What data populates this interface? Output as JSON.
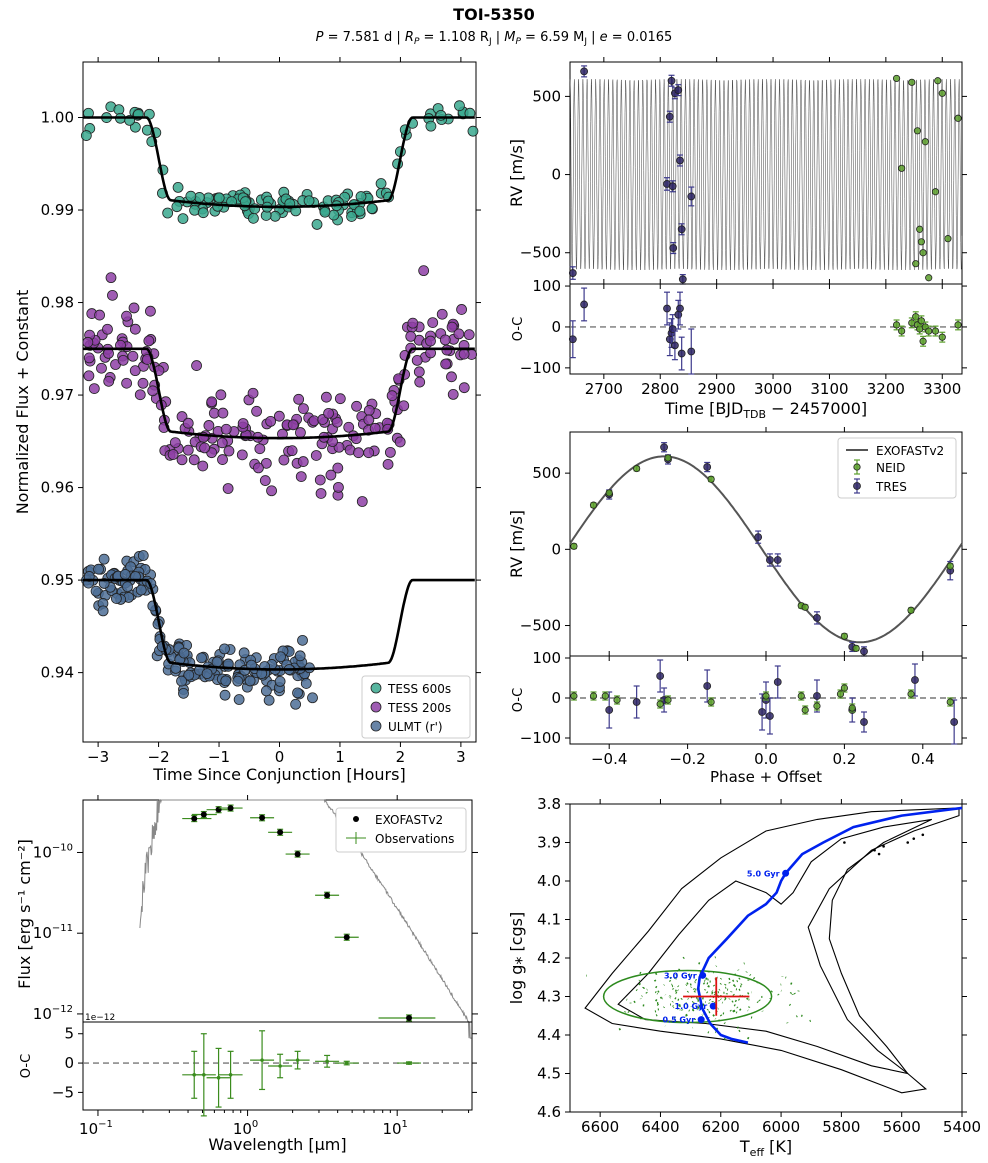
{
  "figure": {
    "title": "TOI-5350",
    "subtitle": {
      "p_sym": "P",
      "p_val": " = 7.581 d  |  ",
      "r_sym": "R",
      "r_sub": "P",
      "r_val": " = 1.108 R",
      "r_unit_sub": "J",
      "sep1": "  |  ",
      "m_sym": "M",
      "m_sub": "P",
      "m_val": " = 6.59 M",
      "m_unit_sub": "J",
      "sep2": "  |  ",
      "e_sym": "e",
      "e_val": " = 0.0165"
    }
  },
  "chart_data": [
    {
      "id": "transit",
      "type": "scatter",
      "xlabel": "Time Since Conjunction [Hours]",
      "ylabel": "Normalized Flux + Constant",
      "xlim": [
        -3.25,
        3.25
      ],
      "ylim": [
        0.9325,
        1.006
      ],
      "xticks": [
        -3,
        -2,
        -1,
        0,
        1,
        2,
        3
      ],
      "yticks": [
        0.94,
        0.95,
        0.96,
        0.97,
        0.98,
        0.99,
        1.0
      ],
      "ytick_labels": [
        "0.94",
        "0.95",
        "0.96",
        "0.97",
        "0.98",
        "0.99",
        "1.00"
      ],
      "series": [
        {
          "name": "TESS 600s",
          "color": "#3aa88e",
          "offset": 1.0,
          "x_range": [
            -3.2,
            3.2
          ],
          "scatter": 0.0009,
          "n": 130
        },
        {
          "name": "TESS 200s",
          "color": "#8e3fa6",
          "offset": 0.975,
          "x_range": [
            -3.2,
            3.2
          ],
          "scatter": 0.0024,
          "n": 230
        },
        {
          "name": "ULMT (r')",
          "color": "#4d6f96",
          "offset": 0.95,
          "x_range": [
            -3.2,
            0.55
          ],
          "scatter": 0.0016,
          "n": 200
        }
      ],
      "model": {
        "color": "#000000",
        "t1": -2.2,
        "t2": -1.8,
        "depth": 0.0093
      },
      "legend": "bottom-right"
    },
    {
      "id": "rv_time",
      "type": "scatter",
      "ylabel": "RV [m/s]",
      "xlim": [
        2640,
        3335
      ],
      "ylim": [
        -700,
        720
      ],
      "yticks": [
        -500,
        0,
        500
      ],
      "period": 7.581,
      "amplitude": 610,
      "neid": {
        "color": "#5a9e2a",
        "points": [
          [
            3219,
            615
          ],
          [
            3228,
            40
          ],
          [
            3246,
            590
          ],
          [
            3253,
            -570
          ],
          [
            3256,
            280
          ],
          [
            3260,
            -350
          ],
          [
            3263,
            -430
          ],
          [
            3266,
            -500
          ],
          [
            3270,
            210
          ],
          [
            3276,
            -660
          ],
          [
            3288,
            -110
          ],
          [
            3292,
            600
          ],
          [
            3300,
            520
          ],
          [
            3310,
            -410
          ],
          [
            3328,
            360
          ]
        ]
      },
      "tres": {
        "color": "#2d2463",
        "points": [
          [
            2645,
            -630,
            40
          ],
          [
            2665,
            660,
            35
          ],
          [
            2812,
            -60,
            40
          ],
          [
            2817,
            370,
            35
          ],
          [
            2820,
            600,
            35
          ],
          [
            2822,
            -75,
            35
          ],
          [
            2823,
            -470,
            35
          ],
          [
            2826,
            520,
            35
          ],
          [
            2832,
            540,
            35
          ],
          [
            2835,
            90,
            35
          ],
          [
            2838,
            -350,
            35
          ],
          [
            2840,
            -670,
            30
          ],
          [
            2855,
            -140,
            60
          ]
        ]
      }
    },
    {
      "id": "rv_time_resid",
      "type": "scatter",
      "ylabel": "O-C",
      "xlabel_main": "Time [BJD",
      "xlabel_sub": "TDB",
      "xlabel_tail": " − 2457000]",
      "xlim": [
        2640,
        3335
      ],
      "ylim": [
        -115,
        105
      ],
      "xticks": [
        2700,
        2800,
        2900,
        3000,
        3100,
        3200,
        3300
      ],
      "yticks": [
        -100,
        0,
        100
      ],
      "neid": [
        [
          3219,
          5
        ],
        [
          3228,
          -10
        ],
        [
          3246,
          10
        ],
        [
          3253,
          25
        ],
        [
          3256,
          5
        ],
        [
          3260,
          -5
        ],
        [
          3263,
          15
        ],
        [
          3266,
          -35
        ],
        [
          3270,
          0
        ],
        [
          3276,
          -10
        ],
        [
          3288,
          -10
        ],
        [
          3300,
          -25
        ],
        [
          3328,
          5
        ]
      ],
      "tres": [
        [
          2645,
          -30,
          45
        ],
        [
          2665,
          55,
          40
        ],
        [
          2812,
          45,
          40
        ],
        [
          2817,
          -30,
          40
        ],
        [
          2820,
          -15,
          35
        ],
        [
          2822,
          -5,
          35
        ],
        [
          2826,
          -45,
          35
        ],
        [
          2832,
          30,
          35
        ],
        [
          2835,
          45,
          40
        ],
        [
          2838,
          -65,
          40
        ],
        [
          2855,
          -60,
          55
        ]
      ]
    },
    {
      "id": "rv_phase",
      "type": "line",
      "ylabel": "RV [m/s]",
      "xlim": [
        -0.5,
        0.5
      ],
      "ylim": [
        -700,
        770
      ],
      "yticks": [
        -500,
        0,
        500
      ],
      "amplitude": 610,
      "legend": {
        "entries": [
          "EXOFASTv2",
          "NEID",
          "TRES"
        ],
        "position": "top-right"
      },
      "model_color": "#555555",
      "neid": [
        [
          -0.49,
          20
        ],
        [
          -0.44,
          290
        ],
        [
          -0.4,
          370
        ],
        [
          -0.33,
          530
        ],
        [
          -0.25,
          600
        ],
        [
          -0.14,
          460
        ],
        [
          0.09,
          -370
        ],
        [
          0.1,
          -380
        ],
        [
          0.2,
          -570
        ],
        [
          0.23,
          -650
        ],
        [
          0.37,
          -400
        ],
        [
          0.47,
          -110
        ]
      ],
      "tres": [
        [
          -0.4,
          360,
          30
        ],
        [
          -0.26,
          670,
          30
        ],
        [
          -0.25,
          590,
          30
        ],
        [
          -0.15,
          540,
          30
        ],
        [
          -0.02,
          80,
          40
        ],
        [
          0.01,
          -70,
          40
        ],
        [
          0.03,
          -70,
          40
        ],
        [
          0.13,
          -450,
          40
        ],
        [
          0.22,
          -640,
          30
        ],
        [
          0.25,
          -670,
          30
        ],
        [
          0.47,
          -140,
          60
        ]
      ]
    },
    {
      "id": "rv_phase_resid",
      "type": "scatter",
      "ylabel": "O-C",
      "xlabel": "Phase + Offset",
      "xlim": [
        -0.5,
        0.5
      ],
      "ylim": [
        -115,
        105
      ],
      "xticks": [
        -0.4,
        -0.2,
        0.0,
        0.2,
        0.4
      ],
      "xtick_labels": [
        "−0.4",
        "−0.2",
        "0.0",
        "0.2",
        "0.4"
      ],
      "yticks": [
        -100,
        0,
        100
      ],
      "neid": [
        [
          -0.49,
          5
        ],
        [
          -0.44,
          5
        ],
        [
          -0.41,
          5
        ],
        [
          -0.38,
          -5
        ],
        [
          -0.27,
          -15
        ],
        [
          -0.25,
          -5
        ],
        [
          -0.14,
          -10
        ],
        [
          0.0,
          5
        ],
        [
          0.09,
          5
        ],
        [
          0.1,
          -30
        ],
        [
          0.13,
          -20
        ],
        [
          0.19,
          10
        ],
        [
          0.2,
          25
        ],
        [
          0.22,
          -25
        ],
        [
          0.37,
          10
        ],
        [
          0.47,
          -10
        ]
      ],
      "tres": [
        [
          -0.4,
          -30,
          45
        ],
        [
          -0.33,
          -10,
          40
        ],
        [
          -0.27,
          55,
          40
        ],
        [
          -0.26,
          -5,
          30
        ],
        [
          -0.15,
          30,
          40
        ],
        [
          -0.01,
          -35,
          45
        ],
        [
          0.0,
          -5,
          45
        ],
        [
          0.01,
          -45,
          45
        ],
        [
          0.03,
          40,
          40
        ],
        [
          0.13,
          5,
          40
        ],
        [
          0.22,
          -30,
          30
        ],
        [
          0.25,
          -60,
          25
        ],
        [
          0.38,
          45,
          40
        ],
        [
          0.48,
          -60,
          55
        ]
      ]
    },
    {
      "id": "sed",
      "type": "scatter",
      "ylabel": "Flux [erg s⁻¹ cm⁻²]",
      "xlim_log": [
        -1.1,
        1.5
      ],
      "ylim_log": [
        -12.1,
        -9.35
      ],
      "yticks_log": [
        -12,
        -11,
        -10
      ],
      "xtick_labels": [
        "10⁻¹",
        "10⁰",
        "10¹"
      ],
      "offset_label": "1e−12",
      "legend": {
        "entries": [
          "EXOFASTv2",
          "Observations"
        ],
        "position": "top-right"
      },
      "model_color": "#888888",
      "obs_color": "#3b8c1e",
      "points": [
        [
          0.44,
          -9.58,
          0.12
        ],
        [
          0.51,
          -9.53,
          0.1
        ],
        [
          0.64,
          -9.47,
          0.1
        ],
        [
          0.77,
          -9.45,
          0.1
        ],
        [
          1.25,
          -9.57,
          0.08
        ],
        [
          1.65,
          -9.75,
          0.08
        ],
        [
          2.16,
          -10.02,
          0.1
        ],
        [
          3.4,
          -10.53,
          0.25
        ],
        [
          4.6,
          -11.05,
          0.4
        ],
        [
          12.0,
          -12.05,
          1.5
        ]
      ]
    },
    {
      "id": "sed_resid",
      "type": "scatter",
      "ylabel": "O-C",
      "xlabel": "Wavelength [μm]",
      "xlim_log": [
        -1.1,
        1.5
      ],
      "ylim": [
        -8,
        7
      ],
      "yticks": [
        -5,
        0,
        5
      ],
      "points": [
        [
          0.44,
          -2,
          0.1,
          4
        ],
        [
          0.51,
          -2,
          0.1,
          7
        ],
        [
          0.64,
          -2.5,
          0.1,
          5
        ],
        [
          0.77,
          -2,
          0.1,
          4
        ],
        [
          1.25,
          0.5,
          0.1,
          5
        ],
        [
          1.65,
          -0.5,
          0.1,
          2
        ],
        [
          2.16,
          0.5,
          0.15,
          1.5
        ],
        [
          3.4,
          0.3,
          0.3,
          1
        ],
        [
          4.6,
          0,
          0.4,
          0.3
        ],
        [
          12.0,
          0,
          1,
          0.2
        ]
      ]
    },
    {
      "id": "hr",
      "type": "line",
      "xlabel_main": "T",
      "xlabel_sub": "eff",
      "xlabel_tail": " [K]",
      "ylabel": "log g⁎ [cgs]",
      "xlim": [
        6700,
        5400
      ],
      "ylim": [
        4.6,
        3.8
      ],
      "xticks": [
        6600,
        6400,
        6200,
        6000,
        5800,
        5600,
        5400
      ],
      "yticks": [
        3.8,
        3.9,
        4.0,
        4.1,
        4.2,
        4.3,
        4.4,
        4.5,
        4.6
      ],
      "track_color": "#0022ee",
      "ages": [
        {
          "label": "5.0 Gyr",
          "T": 5985,
          "g": 3.98
        },
        {
          "label": "3.0 Gyr",
          "T": 6260,
          "g": 4.245
        },
        {
          "label": "1.0 Gyr",
          "T": 6225,
          "g": 4.325
        },
        {
          "label": "0.5 Gyr",
          "T": 6265,
          "g": 4.36
        }
      ],
      "best_fit": {
        "T": 6215,
        "g": 4.3,
        "Terr": 110,
        "gerr": 0.05,
        "color": "#dd1111"
      },
      "posterior_color": "#2d8a1e"
    }
  ]
}
